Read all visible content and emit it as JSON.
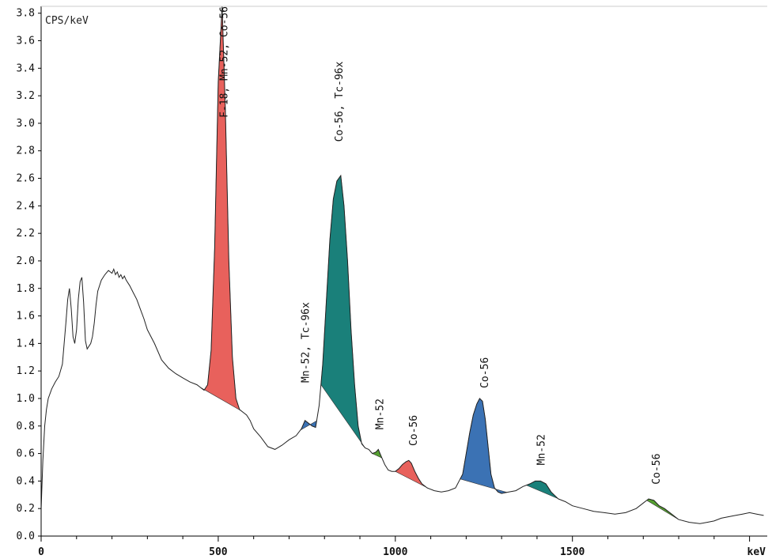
{
  "chart_data": {
    "type": "area",
    "ylabel": "CPS/keV",
    "xlabel": "keV",
    "xlim": [
      0,
      2050
    ],
    "ylim": [
      0,
      3.85
    ],
    "x_ticks": [
      0,
      500,
      1000,
      1500
    ],
    "y_ticks": [
      0.0,
      0.2,
      0.4,
      0.6,
      0.8,
      1.0,
      1.2,
      1.4,
      1.6,
      1.8,
      2.0,
      2.2,
      2.4,
      2.6,
      2.8,
      3.0,
      3.2,
      3.4,
      3.6,
      3.8
    ],
    "y_tick_labels": [
      "0.0",
      "0.2",
      "0.4",
      "0.6",
      "0.8",
      "1.0",
      "1.2",
      "1.4",
      "1.6",
      "1.8",
      "2.0",
      "2.2",
      "2.4",
      "2.6",
      "2.8",
      "3.0",
      "3.2",
      "3.4",
      "3.6",
      "3.8"
    ],
    "grid": false,
    "spectrum": {
      "x": [
        0,
        5,
        10,
        15,
        20,
        30,
        40,
        50,
        60,
        70,
        75,
        80,
        85,
        90,
        95,
        100,
        105,
        110,
        115,
        120,
        125,
        130,
        135,
        140,
        145,
        150,
        155,
        160,
        170,
        180,
        190,
        200,
        205,
        210,
        215,
        220,
        225,
        230,
        235,
        240,
        250,
        260,
        270,
        280,
        290,
        300,
        320,
        340,
        360,
        380,
        400,
        420,
        440,
        460,
        470,
        480,
        490,
        500,
        511,
        520,
        530,
        540,
        550,
        560,
        570,
        580,
        590,
        600,
        620,
        640,
        660,
        680,
        700,
        720,
        735,
        745,
        755,
        765,
        775,
        785,
        795,
        805,
        815,
        825,
        835,
        846,
        855,
        865,
        875,
        885,
        895,
        905,
        915,
        925,
        935,
        945,
        952,
        960,
        970,
        980,
        990,
        1000,
        1010,
        1020,
        1030,
        1038,
        1045,
        1055,
        1065,
        1075,
        1090,
        1110,
        1130,
        1150,
        1170,
        1190,
        1200,
        1210,
        1220,
        1230,
        1238,
        1246,
        1254,
        1262,
        1270,
        1280,
        1290,
        1300,
        1320,
        1340,
        1360,
        1380,
        1395,
        1410,
        1425,
        1440,
        1460,
        1480,
        1500,
        1530,
        1560,
        1590,
        1620,
        1650,
        1680,
        1700,
        1715,
        1730,
        1745,
        1760,
        1780,
        1800,
        1830,
        1860,
        1880,
        1900,
        1920,
        1940,
        1960,
        1980,
        2000,
        2020,
        2040
      ],
      "y": [
        0.2,
        0.55,
        0.8,
        0.92,
        1.0,
        1.07,
        1.12,
        1.16,
        1.25,
        1.55,
        1.72,
        1.8,
        1.65,
        1.45,
        1.4,
        1.5,
        1.72,
        1.85,
        1.88,
        1.7,
        1.42,
        1.36,
        1.38,
        1.4,
        1.45,
        1.55,
        1.68,
        1.78,
        1.86,
        1.9,
        1.93,
        1.91,
        1.94,
        1.9,
        1.92,
        1.88,
        1.9,
        1.87,
        1.89,
        1.86,
        1.82,
        1.77,
        1.72,
        1.65,
        1.58,
        1.5,
        1.4,
        1.28,
        1.22,
        1.18,
        1.15,
        1.12,
        1.1,
        1.06,
        1.1,
        1.35,
        2.1,
        3.3,
        3.85,
        3.1,
        2.0,
        1.3,
        1.0,
        0.92,
        0.9,
        0.88,
        0.84,
        0.78,
        0.72,
        0.65,
        0.63,
        0.66,
        0.7,
        0.73,
        0.78,
        0.84,
        0.82,
        0.8,
        0.79,
        0.95,
        1.25,
        1.7,
        2.15,
        2.45,
        2.58,
        2.62,
        2.4,
        2.0,
        1.5,
        1.1,
        0.8,
        0.67,
        0.64,
        0.63,
        0.6,
        0.61,
        0.63,
        0.58,
        0.52,
        0.48,
        0.47,
        0.47,
        0.49,
        0.52,
        0.54,
        0.55,
        0.53,
        0.47,
        0.42,
        0.38,
        0.35,
        0.33,
        0.32,
        0.33,
        0.35,
        0.45,
        0.6,
        0.75,
        0.88,
        0.96,
        1.0,
        0.98,
        0.85,
        0.65,
        0.45,
        0.35,
        0.32,
        0.31,
        0.32,
        0.33,
        0.36,
        0.38,
        0.4,
        0.4,
        0.38,
        0.32,
        0.27,
        0.25,
        0.22,
        0.2,
        0.18,
        0.17,
        0.16,
        0.17,
        0.2,
        0.24,
        0.27,
        0.26,
        0.22,
        0.2,
        0.16,
        0.12,
        0.1,
        0.09,
        0.1,
        0.11,
        0.13,
        0.14,
        0.15,
        0.16,
        0.17,
        0.16,
        0.15
      ]
    },
    "peaks": [
      {
        "label": "F-18, Mn-52, Co-56",
        "x_start": 450,
        "x_end": 565,
        "color": "#e8615c",
        "label_x": 515,
        "label_y_top": 3.85
      },
      {
        "label": "Mn-52, Tc-96x",
        "x_start": 732,
        "x_end": 778,
        "color": "#3b72b4",
        "label_x": 745,
        "label_y_top": 1.7
      },
      {
        "label": "Co-56, Tc-96x",
        "x_start": 790,
        "x_end": 915,
        "color": "#1a807a",
        "label_x": 840,
        "label_y_top": 3.45
      },
      {
        "label": "Mn-52",
        "x_start": 935,
        "x_end": 962,
        "color": "#55a030",
        "label_x": 955,
        "label_y_top": 1.0
      },
      {
        "label": "Co-56",
        "x_start": 1000,
        "x_end": 1095,
        "color": "#e8615c",
        "label_x": 1050,
        "label_y_top": 0.88
      },
      {
        "label": "Co-56",
        "x_start": 1183,
        "x_end": 1315,
        "color": "#3b72b4",
        "label_x": 1250,
        "label_y_top": 1.3
      },
      {
        "label": "Mn-52",
        "x_start": 1370,
        "x_end": 1475,
        "color": "#1a807a",
        "label_x": 1410,
        "label_y_top": 0.74
      },
      {
        "label": "Co-56",
        "x_start": 1710,
        "x_end": 1800,
        "color": "#55a030",
        "label_x": 1735,
        "label_y_top": 0.6
      }
    ]
  }
}
